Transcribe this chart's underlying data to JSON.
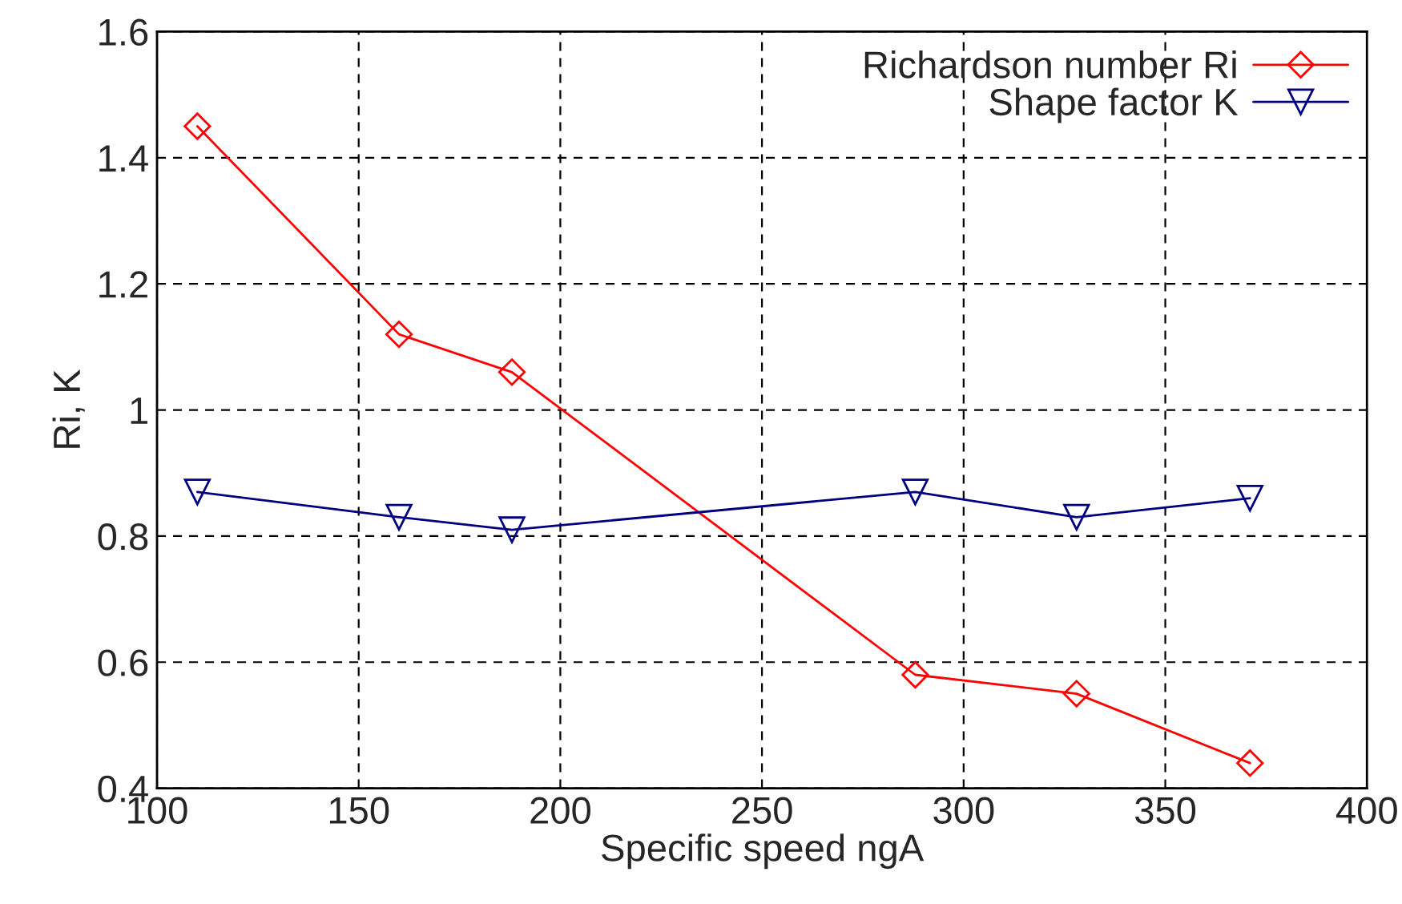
{
  "chart_data": {
    "type": "line",
    "xlabel": "Specific speed ngA",
    "ylabel": "Ri, K",
    "x": [
      110,
      160,
      188,
      288,
      328,
      371
    ],
    "series": [
      {
        "name": "Richardson number Ri",
        "color": "#ff0000",
        "marker": "diamond",
        "values": [
          1.45,
          1.12,
          1.06,
          0.58,
          0.55,
          0.44
        ]
      },
      {
        "name": "Shape factor K",
        "color": "#000080",
        "marker": "triangle",
        "values": [
          0.87,
          0.83,
          0.81,
          0.87,
          0.83,
          0.86
        ]
      }
    ],
    "xlim": [
      100,
      400
    ],
    "xticks": [
      100,
      150,
      200,
      250,
      300,
      350,
      400
    ],
    "ylim": [
      0.4,
      1.6
    ],
    "yticks": [
      0.4,
      0.6,
      0.8,
      1,
      1.2,
      1.4,
      1.6
    ],
    "grid": true,
    "legend": "top right",
    "line_style": "solid"
  }
}
